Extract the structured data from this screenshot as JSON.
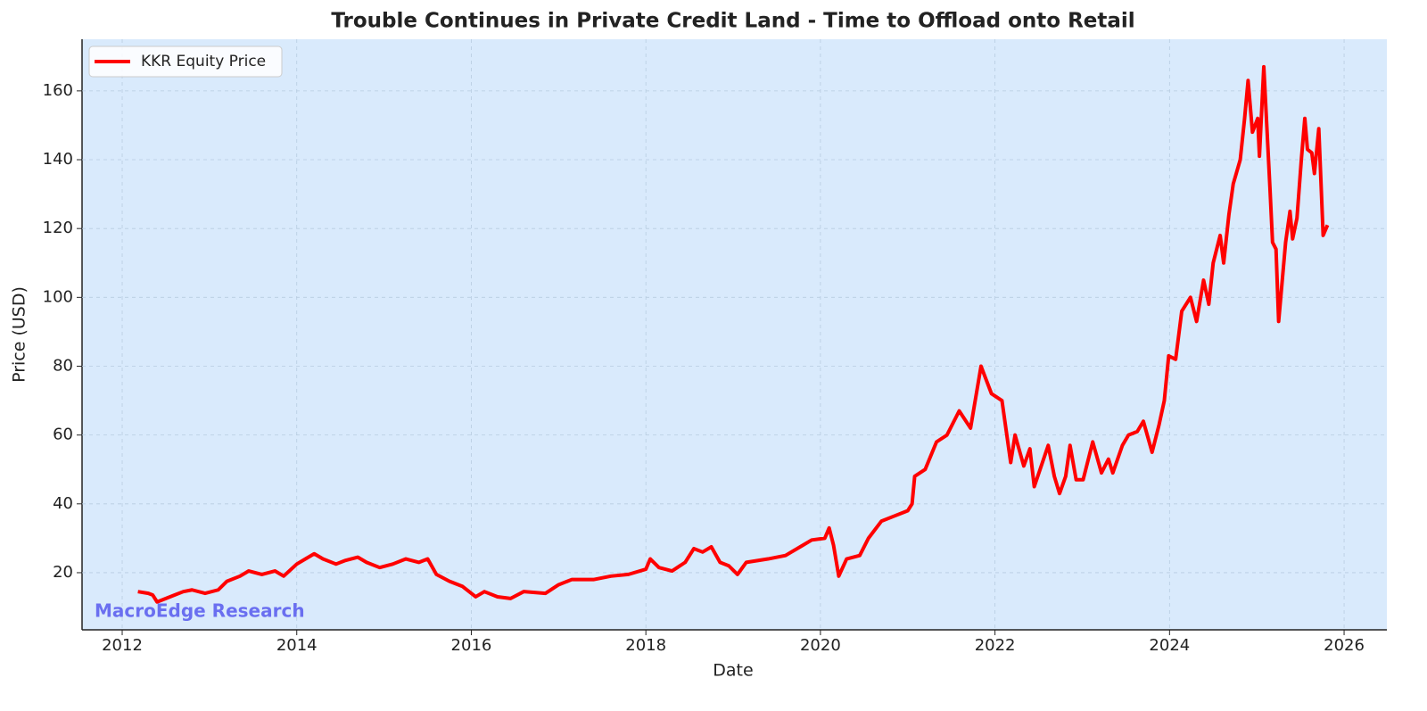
{
  "chart_data": {
    "type": "line",
    "title": "Trouble Continues in Private Credit Land - Time to Offload onto Retail",
    "x_label": "Date",
    "y_label": "Price (USD)",
    "annotation": "MacroEdge Research",
    "legend": "upper left",
    "grid": true,
    "xlim": [
      2011.54,
      2026.49
    ],
    "ylim": [
      3.4,
      175
    ],
    "xticks": [
      2012,
      2014,
      2016,
      2018,
      2020,
      2022,
      2024,
      2026
    ],
    "yticks": [
      20,
      40,
      60,
      80,
      100,
      120,
      140,
      160
    ],
    "x": [
      2012.18,
      2012.3,
      2012.35,
      2012.4,
      2012.5,
      2012.6,
      2012.7,
      2012.8,
      2012.95,
      2013.1,
      2013.2,
      2013.35,
      2013.45,
      2013.6,
      2013.75,
      2013.85,
      2014.0,
      2014.1,
      2014.2,
      2014.3,
      2014.45,
      2014.55,
      2014.7,
      2014.8,
      2014.95,
      2015.1,
      2015.25,
      2015.4,
      2015.5,
      2015.6,
      2015.75,
      2015.9,
      2016.05,
      2016.15,
      2016.3,
      2016.45,
      2016.6,
      2016.85,
      2017.0,
      2017.15,
      2017.4,
      2017.6,
      2017.8,
      2018.0,
      2018.05,
      2018.15,
      2018.3,
      2018.45,
      2018.55,
      2018.65,
      2018.75,
      2018.85,
      2018.95,
      2019.05,
      2019.15,
      2019.4,
      2019.6,
      2019.8,
      2019.9,
      2020.05,
      2020.1,
      2020.15,
      2020.21,
      2020.3,
      2020.45,
      2020.55,
      2020.7,
      2020.85,
      2021.0,
      2021.05,
      2021.08,
      2021.2,
      2021.33,
      2021.45,
      2021.59,
      2021.72,
      2021.84,
      2021.96,
      2022.08,
      2022.18,
      2022.23,
      2022.33,
      2022.4,
      2022.45,
      2022.61,
      2022.68,
      2022.74,
      2022.81,
      2022.86,
      2022.93,
      2023.01,
      2023.12,
      2023.22,
      2023.3,
      2023.35,
      2023.46,
      2023.53,
      2023.63,
      2023.7,
      2023.8,
      2023.88,
      2023.94,
      2023.99,
      2024.07,
      2024.14,
      2024.24,
      2024.31,
      2024.39,
      2024.45,
      2024.5,
      2024.58,
      2024.62,
      2024.68,
      2024.73,
      2024.81,
      2024.86,
      2024.9,
      2024.95,
      2025.01,
      2025.03,
      2025.08,
      2025.15,
      2025.18,
      2025.22,
      2025.25,
      2025.33,
      2025.38,
      2025.41,
      2025.46,
      2025.51,
      2025.55,
      2025.58,
      2025.63,
      2025.66,
      2025.71,
      2025.76,
      2025.81
    ],
    "series": [
      {
        "name": "KKR Equity Price",
        "color": "#ff0000",
        "values": [
          14.5,
          14,
          13.5,
          11.5,
          12.5,
          13.5,
          14.5,
          15,
          14,
          15,
          17.5,
          19,
          20.5,
          19.5,
          20.5,
          19,
          22.5,
          24,
          25.5,
          24,
          22.5,
          23.5,
          24.5,
          23,
          21.5,
          22.5,
          24,
          23,
          24,
          19.5,
          17.5,
          16,
          13,
          14.5,
          13,
          12.5,
          14.5,
          14,
          16.5,
          18,
          18,
          19,
          19.5,
          21,
          24,
          21.5,
          20.5,
          23,
          27,
          26,
          27.5,
          23,
          22,
          19.5,
          23,
          24,
          25,
          28,
          29.5,
          30,
          33,
          28,
          19,
          24,
          25,
          30,
          35,
          36.5,
          38,
          40,
          48,
          50,
          58,
          60,
          67,
          62,
          80,
          72,
          70,
          52,
          60,
          51,
          56,
          45,
          57,
          48,
          43,
          48,
          57,
          47,
          47,
          58,
          49,
          53,
          49,
          57,
          60,
          61,
          64,
          55,
          63,
          70,
          83,
          82,
          96,
          100,
          93,
          105,
          98,
          110,
          118,
          110,
          124,
          133,
          140,
          152,
          163,
          148,
          152,
          141,
          167,
          132,
          116,
          114,
          93,
          116,
          125,
          117,
          123,
          140,
          152,
          143,
          142,
          136,
          149,
          118,
          121
        ]
      }
    ]
  }
}
